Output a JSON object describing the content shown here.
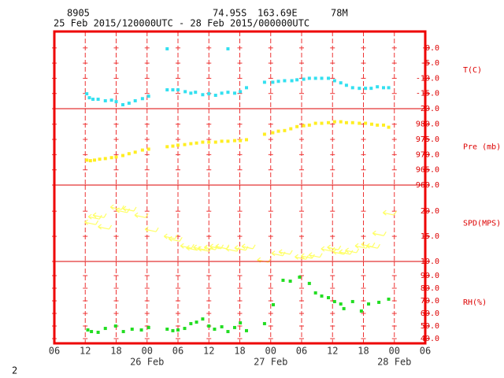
{
  "header": {
    "station": "8905",
    "lat": "74.95S",
    "lon": "163.69E",
    "elev": "78M",
    "period": "25 Feb 2015/120000UTC - 28 Feb 2015/000000UTC"
  },
  "footer": "2",
  "chart_data": [
    {
      "type": "scatter",
      "ylabel": "T(C)",
      "color": "#33e0f0",
      "xlim": [
        6,
        78
      ],
      "ylim": [
        -20,
        5.4
      ],
      "yticks": [
        {
          "value": 0,
          "label": "0.0"
        },
        {
          "value": -5,
          "label": "-5.0"
        },
        {
          "value": -10,
          "label": "-10.0"
        },
        {
          "value": -15,
          "label": "-15.0"
        },
        {
          "value": -20,
          "label": "-20.0"
        }
      ],
      "x": [
        12.3,
        12.8,
        13.5,
        14.5,
        15.9,
        17.1,
        18.0,
        19.3,
        20.5,
        21.7,
        23.1,
        24.3,
        27.9,
        27.9,
        29.0,
        30.0,
        31.4,
        32.5,
        33.4,
        34.8,
        36.0,
        37.3,
        38.5,
        39.7,
        39.7,
        41.0,
        42.1,
        43.3,
        46.8,
        48.4,
        49.5,
        50.7,
        52.1,
        53.1,
        54.4,
        55.5,
        56.7,
        57.9,
        59.2,
        60.4,
        61.6,
        62.7,
        63.9,
        65.2,
        66.4,
        67.5,
        68.7,
        69.9,
        70.9
      ],
      "values": [
        -15.1,
        -16.4,
        -16.9,
        -16.9,
        -17.4,
        -17.2,
        -17.7,
        -18.7,
        -18.2,
        -17.4,
        -16.7,
        -15.9,
        -0.3,
        -13.8,
        -13.8,
        -13.8,
        -14.4,
        -14.9,
        -14.6,
        -15.4,
        -15.1,
        -15.6,
        -14.9,
        -0.3,
        -14.6,
        -14.9,
        -14.4,
        -13.1,
        -11.3,
        -11.3,
        -11.0,
        -10.8,
        -10.8,
        -10.5,
        -10.3,
        -10.0,
        -10.0,
        -10.0,
        -10.0,
        -10.8,
        -11.5,
        -12.3,
        -13.1,
        -13.3,
        -13.3,
        -13.3,
        -12.8,
        -13.1,
        -13.1
      ]
    },
    {
      "type": "scatter",
      "ylabel": "Pre (mb)",
      "color": "#ffee22",
      "xlim": [
        6,
        78
      ],
      "ylim": [
        960,
        985.1
      ],
      "yticks": [
        {
          "value": 980,
          "label": "980.0"
        },
        {
          "value": 975,
          "label": "975.0"
        },
        {
          "value": 970,
          "label": "970.0"
        },
        {
          "value": 965,
          "label": "965.0"
        },
        {
          "value": 960,
          "label": "960.0"
        }
      ],
      "x": [
        12.3,
        13.0,
        13.8,
        14.8,
        15.9,
        17.1,
        18.0,
        19.3,
        20.5,
        21.7,
        23.1,
        24.3,
        27.9,
        29.0,
        30.0,
        31.3,
        32.5,
        33.6,
        34.8,
        36.0,
        37.3,
        38.5,
        39.7,
        41.0,
        42.1,
        43.3,
        46.8,
        48.4,
        49.5,
        50.7,
        51.9,
        53.1,
        54.4,
        55.5,
        56.7,
        57.9,
        59.2,
        60.4,
        61.6,
        62.7,
        63.9,
        65.2,
        66.4,
        67.6,
        68.7,
        69.9,
        70.9
      ],
      "values": [
        968.2,
        968.0,
        968.2,
        968.5,
        968.7,
        969.0,
        969.2,
        969.7,
        970.3,
        970.8,
        971.5,
        971.8,
        972.6,
        972.8,
        973.1,
        973.3,
        973.6,
        973.8,
        974.1,
        974.1,
        974.1,
        974.4,
        974.4,
        974.6,
        974.6,
        974.9,
        976.7,
        977.2,
        977.7,
        977.9,
        978.5,
        979.2,
        979.5,
        979.7,
        980.3,
        980.3,
        980.5,
        980.8,
        980.8,
        980.5,
        980.5,
        980.3,
        980.3,
        980.0,
        979.7,
        979.7,
        979.0
      ]
    },
    {
      "type": "vector",
      "ylabel": "SPD(MPS)",
      "color": "#ffff66",
      "xlim": [
        6,
        78
      ],
      "ylim": [
        10,
        25.2
      ],
      "yticks": [
        {
          "value": 20,
          "label": "20.0"
        },
        {
          "value": 15,
          "label": "15.0"
        },
        {
          "value": 10,
          "label": "10.0"
        }
      ],
      "x": [
        11.9,
        12.6,
        13.5,
        14.5,
        16.9,
        18.0,
        19.3,
        21.6,
        23.6,
        27.3,
        28.2,
        30.5,
        31.6,
        33.0,
        33.9,
        35.1,
        36.2,
        37.3,
        39.3,
        41.0,
        42.4,
        45.4,
        48.2,
        49.6,
        52.7,
        53.9,
        55.4,
        57.8,
        59.0,
        60.1,
        61.3,
        62.5,
        64.4,
        65.6,
        66.6,
        67.8,
        69.8
      ],
      "values": [
        17.8,
        18.9,
        19.2,
        16.9,
        20.8,
        20.2,
        20.5,
        19.2,
        16.4,
        15.0,
        14.5,
        13.1,
        12.7,
        12.8,
        12.5,
        12.8,
        13.0,
        13.0,
        12.5,
        12.7,
        13.0,
        10.3,
        11.6,
        11.9,
        10.9,
        11.1,
        11.3,
        12.5,
        12.8,
        11.9,
        11.9,
        12.2,
        13.1,
        13.4,
        13.1,
        15.6,
        19.7
      ]
    },
    {
      "type": "scatter",
      "ylabel": "RH(%)",
      "color": "#22dd22",
      "xlim": [
        6,
        78
      ],
      "ylim": [
        36.25,
        101.25
      ],
      "yticks": [
        {
          "value": 90,
          "label": "90.0"
        },
        {
          "value": 80,
          "label": "80.0"
        },
        {
          "value": 70,
          "label": "70.0"
        },
        {
          "value": 60,
          "label": "60.0"
        },
        {
          "value": 50,
          "label": "50.0"
        },
        {
          "value": 40,
          "label": "40.0"
        }
      ],
      "xticks": [
        {
          "value": 6,
          "label": "06"
        },
        {
          "value": 12,
          "label": "12"
        },
        {
          "value": 18,
          "label": "18"
        },
        {
          "value": 24,
          "label": "00"
        },
        {
          "value": 30,
          "label": "06"
        },
        {
          "value": 36,
          "label": "12"
        },
        {
          "value": 42,
          "label": "18"
        },
        {
          "value": 48,
          "label": "00"
        },
        {
          "value": 54,
          "label": "06"
        },
        {
          "value": 60,
          "label": "12"
        },
        {
          "value": 66,
          "label": "18"
        },
        {
          "value": 72,
          "label": "00"
        },
        {
          "value": 78,
          "label": "06"
        }
      ],
      "day_labels": [
        {
          "value": 24,
          "label": "26 Feb"
        },
        {
          "value": 48,
          "label": "27 Feb"
        },
        {
          "value": 72,
          "label": "28 Feb"
        }
      ],
      "x": [
        12.5,
        13.2,
        14.5,
        15.9,
        17.9,
        19.4,
        21.1,
        22.9,
        24.3,
        27.9,
        29.0,
        30.0,
        31.3,
        32.5,
        33.6,
        34.8,
        36.0,
        37.1,
        38.5,
        39.7,
        41.0,
        42.1,
        43.3,
        46.8,
        48.5,
        50.4,
        51.8,
        53.6,
        55.5,
        56.7,
        57.9,
        59.2,
        60.4,
        61.6,
        62.2,
        63.9,
        65.6,
        67.0,
        69.0,
        70.9
      ],
      "values": [
        46.9,
        45.6,
        45.0,
        48.1,
        50.0,
        45.6,
        47.5,
        46.9,
        48.8,
        47.5,
        46.3,
        46.9,
        48.1,
        51.9,
        53.1,
        55.6,
        50.0,
        47.5,
        49.4,
        45.6,
        48.8,
        52.5,
        46.3,
        51.9,
        66.9,
        86.3,
        85.6,
        88.8,
        83.8,
        76.3,
        73.8,
        72.5,
        69.4,
        67.5,
        63.8,
        69.4,
        61.9,
        67.5,
        68.8,
        71.3
      ]
    }
  ]
}
